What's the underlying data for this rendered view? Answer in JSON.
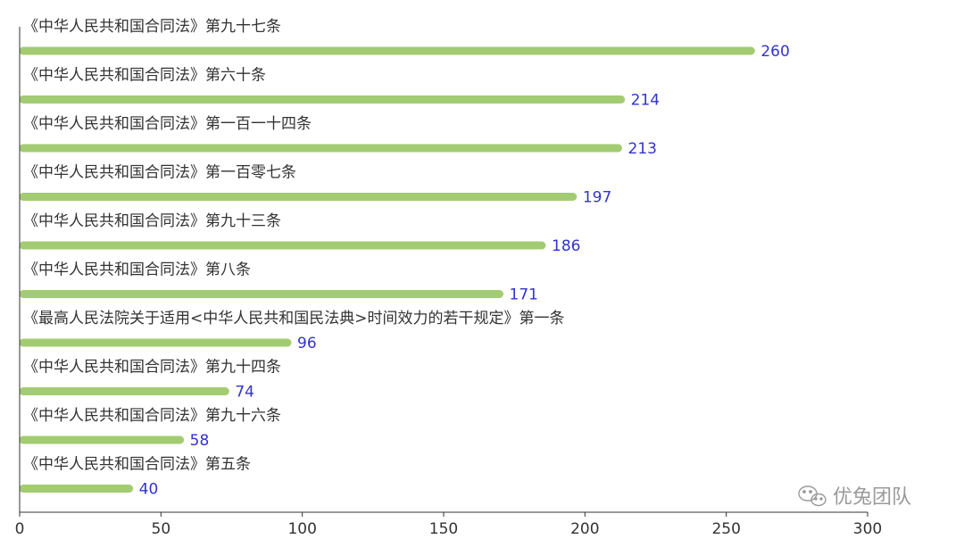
{
  "chart_data": {
    "type": "bar",
    "orientation": "horizontal",
    "categories": [
      "《中华人民共和国合同法》第九十七条",
      "《中华人民共和国合同法》第六十条",
      "《中华人民共和国合同法》第一百一十四条",
      "《中华人民共和国合同法》第一百零七条",
      "《中华人民共和国合同法》第九十三条",
      "《中华人民共和国合同法》第八条",
      "《最高人民法院关于适用<中华人民共和国民法典>时间效力的若干规定》第一条",
      "《中华人民共和国合同法》第九十四条",
      "《中华人民共和国合同法》第九十六条",
      "《中华人民共和国合同法》第五条"
    ],
    "values": [
      260,
      214,
      213,
      197,
      186,
      171,
      96,
      74,
      58,
      40
    ],
    "xlim": [
      0,
      300
    ],
    "xticks": [
      0,
      50,
      100,
      150,
      200,
      250,
      300
    ],
    "title": "",
    "xlabel": "",
    "ylabel": "",
    "grid": false,
    "bar_color": "#a3cc72",
    "value_label_color": "#3333cc"
  },
  "watermark": {
    "text": "优兔团队",
    "icon": "wechat-icon"
  }
}
